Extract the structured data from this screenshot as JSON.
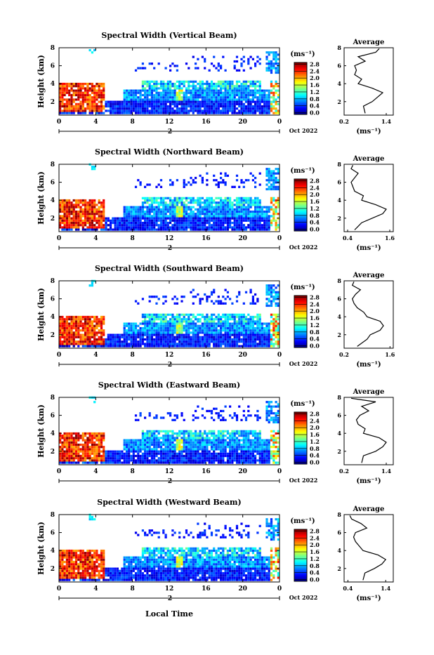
{
  "figure": {
    "xlabel": "Local Time",
    "date_label": "Oct 2022",
    "ylabel": "Height (km)",
    "unit_label": "(ms⁻¹)",
    "avg_title": "Average",
    "avg_xlabel": "(ms⁻¹)",
    "day_marker": "2"
  },
  "chart_data": [
    {
      "type": "heatmap",
      "title": "Spectral Width (Vertical Beam)",
      "x_ticks": [
        "0",
        "4",
        "8",
        "12",
        "16",
        "20",
        "0"
      ],
      "xlim": [
        0,
        24
      ],
      "y_ticks": [
        "2",
        "4",
        "6",
        "8"
      ],
      "ylim": [
        0.5,
        8
      ],
      "colorbar": {
        "ticks": [
          "0.0",
          "0.4",
          "0.8",
          "1.2",
          "1.6",
          "2.0",
          "2.4",
          "2.8"
        ],
        "range": [
          0,
          3.0
        ]
      },
      "average_profile": {
        "xlim": [
          0.2,
          1.6
        ],
        "x_ticks": [
          "0.2",
          "1.4"
        ],
        "heights": [
          0.7,
          1.5,
          2.0,
          2.5,
          3.0,
          3.5,
          4.0,
          4.5,
          5.0,
          5.5,
          6.0,
          6.5,
          7.0,
          7.5,
          7.9
        ],
        "values": [
          0.8,
          0.75,
          1.0,
          1.15,
          1.3,
          1.0,
          0.6,
          0.7,
          0.5,
          0.55,
          0.5,
          0.8,
          0.6,
          1.1,
          1.2
        ]
      }
    },
    {
      "type": "heatmap",
      "title": "Spectral Width (Northward Beam)",
      "x_ticks": [
        "0",
        "4",
        "8",
        "12",
        "16",
        "20",
        "0"
      ],
      "xlim": [
        0,
        24
      ],
      "y_ticks": [
        "2",
        "4",
        "6",
        "8"
      ],
      "ylim": [
        0.5,
        8
      ],
      "colorbar": {
        "ticks": [
          "0.0",
          "0.4",
          "0.8",
          "1.2",
          "1.6",
          "2.0",
          "2.4",
          "2.8"
        ],
        "range": [
          0,
          3.0
        ]
      },
      "average_profile": {
        "xlim": [
          0.3,
          1.7
        ],
        "x_ticks": [
          "0.4",
          "1.6"
        ],
        "heights": [
          0.7,
          1.5,
          2.0,
          2.5,
          3.0,
          3.5,
          4.0,
          4.5,
          5.0,
          5.5,
          6.0,
          6.5,
          7.0,
          7.5,
          7.9
        ],
        "values": [
          0.6,
          0.8,
          1.1,
          1.4,
          1.5,
          1.2,
          0.8,
          0.85,
          0.6,
          0.55,
          0.5,
          0.6,
          0.7,
          0.5,
          0.55
        ]
      }
    },
    {
      "type": "heatmap",
      "title": "Spectral Width (Southward Beam)",
      "x_ticks": [
        "0",
        "4",
        "8",
        "12",
        "16",
        "20",
        "0"
      ],
      "xlim": [
        0,
        24
      ],
      "y_ticks": [
        "2",
        "4",
        "6",
        "8"
      ],
      "ylim": [
        0.5,
        8
      ],
      "colorbar": {
        "ticks": [
          "0.0",
          "0.4",
          "0.8",
          "1.2",
          "1.6",
          "2.0",
          "2.4",
          "2.8"
        ],
        "range": [
          0,
          3.0
        ]
      },
      "average_profile": {
        "xlim": [
          0.2,
          1.7
        ],
        "x_ticks": [
          "0.2",
          "1.6"
        ],
        "heights": [
          0.7,
          1.5,
          2.0,
          2.5,
          3.0,
          3.5,
          4.0,
          4.5,
          5.0,
          5.5,
          6.0,
          6.5,
          7.0,
          7.5,
          7.9
        ],
        "values": [
          0.6,
          0.9,
          1.0,
          1.3,
          1.4,
          1.3,
          0.9,
          0.8,
          0.6,
          0.5,
          0.45,
          0.55,
          0.7,
          0.45,
          0.5
        ]
      }
    },
    {
      "type": "heatmap",
      "title": "Spectral Width (Eastward Beam)",
      "x_ticks": [
        "0",
        "4",
        "8",
        "12",
        "16",
        "20",
        "0"
      ],
      "xlim": [
        0,
        24
      ],
      "y_ticks": [
        "2",
        "4",
        "6",
        "8"
      ],
      "ylim": [
        0.5,
        8
      ],
      "colorbar": {
        "ticks": [
          "0.0",
          "0.4",
          "0.8",
          "1.2",
          "1.6",
          "2.0",
          "2.4",
          "2.8"
        ],
        "range": [
          0,
          3.0
        ]
      },
      "average_profile": {
        "xlim": [
          0.2,
          1.6
        ],
        "x_ticks": [
          "0.2",
          "1.4"
        ],
        "heights": [
          0.7,
          1.5,
          2.0,
          2.5,
          3.0,
          3.5,
          4.0,
          4.5,
          5.0,
          5.5,
          6.0,
          6.5,
          7.0,
          7.5,
          7.9
        ],
        "values": [
          0.7,
          0.75,
          1.1,
          1.3,
          1.4,
          1.2,
          0.75,
          0.8,
          0.6,
          0.55,
          0.65,
          0.9,
          0.7,
          1.1,
          0.4
        ]
      }
    },
    {
      "type": "heatmap",
      "title": "Spectral Width (Westward Beam)",
      "x_ticks": [
        "0",
        "4",
        "8",
        "12",
        "16",
        "20",
        "0"
      ],
      "xlim": [
        0,
        24
      ],
      "y_ticks": [
        "2",
        "4",
        "6",
        "8"
      ],
      "ylim": [
        0.5,
        8
      ],
      "colorbar": {
        "ticks": [
          "0.0",
          "0.4",
          "0.8",
          "1.2",
          "1.6",
          "2.0",
          "2.4",
          "2.8"
        ],
        "range": [
          0,
          3.0
        ]
      },
      "average_profile": {
        "xlim": [
          0.3,
          1.6
        ],
        "x_ticks": [
          "0.4",
          "1.4"
        ],
        "heights": [
          0.7,
          1.5,
          2.0,
          2.5,
          3.0,
          3.5,
          4.0,
          4.5,
          5.0,
          5.5,
          6.0,
          6.5,
          7.0,
          7.5,
          7.9
        ],
        "values": [
          0.8,
          0.85,
          1.1,
          1.3,
          1.4,
          1.2,
          0.8,
          0.7,
          0.6,
          0.55,
          0.6,
          0.9,
          0.75,
          0.5,
          0.45
        ]
      }
    }
  ]
}
